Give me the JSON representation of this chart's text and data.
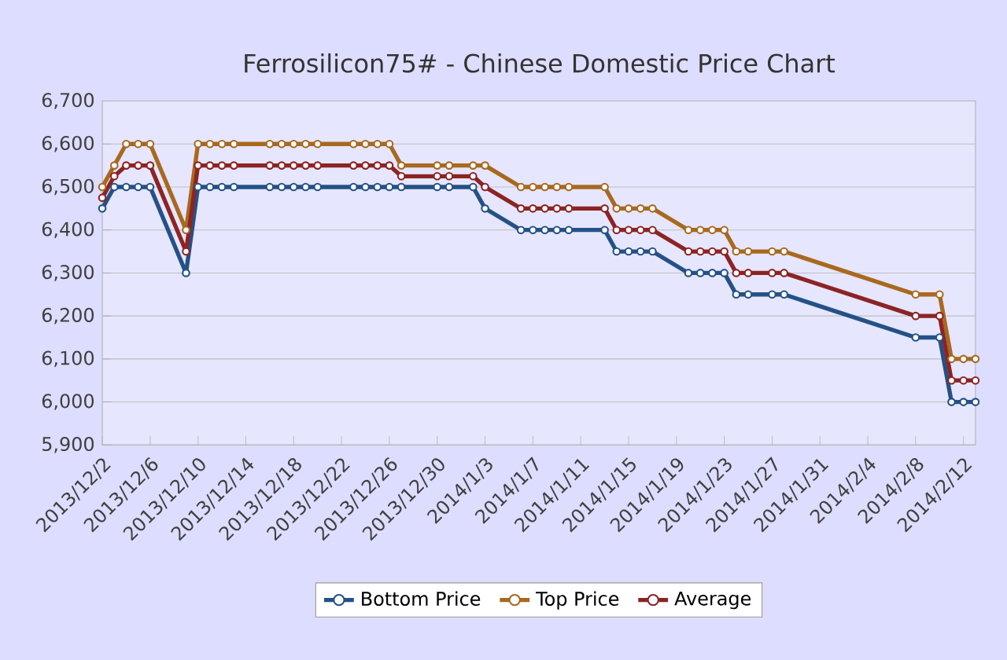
{
  "chart_data": {
    "type": "line",
    "title": "Ferrosilicon75# - Chinese Domestic Price Chart",
    "x": [
      "2013-12-02",
      "2013-12-03",
      "2013-12-04",
      "2013-12-05",
      "2013-12-06",
      "2013-12-09",
      "2013-12-10",
      "2013-12-11",
      "2013-12-12",
      "2013-12-13",
      "2013-12-16",
      "2013-12-17",
      "2013-12-18",
      "2013-12-19",
      "2013-12-20",
      "2013-12-23",
      "2013-12-24",
      "2013-12-25",
      "2013-12-26",
      "2013-12-27",
      "2013-12-30",
      "2013-12-31",
      "2014-01-02",
      "2014-01-03",
      "2014-01-06",
      "2014-01-07",
      "2014-01-08",
      "2014-01-09",
      "2014-01-10",
      "2014-01-13",
      "2014-01-14",
      "2014-01-15",
      "2014-01-16",
      "2014-01-17",
      "2014-01-20",
      "2014-01-21",
      "2014-01-22",
      "2014-01-23",
      "2014-01-24",
      "2014-01-25",
      "2014-01-27",
      "2014-01-28",
      "2014-02-08",
      "2014-02-10",
      "2014-02-11",
      "2014-02-12",
      "2014-02-13"
    ],
    "series": [
      {
        "name": "Bottom Price",
        "color": "#245186",
        "values": [
          6450,
          6500,
          6500,
          6500,
          6500,
          6300,
          6500,
          6500,
          6500,
          6500,
          6500,
          6500,
          6500,
          6500,
          6500,
          6500,
          6500,
          6500,
          6500,
          6500,
          6500,
          6500,
          6500,
          6450,
          6400,
          6400,
          6400,
          6400,
          6400,
          6400,
          6350,
          6350,
          6350,
          6350,
          6300,
          6300,
          6300,
          6300,
          6250,
          6250,
          6250,
          6250,
          6150,
          6150,
          6000,
          6000,
          6000
        ]
      },
      {
        "name": "Top Price",
        "color": "#a8691f",
        "values": [
          6500,
          6550,
          6600,
          6600,
          6600,
          6400,
          6600,
          6600,
          6600,
          6600,
          6600,
          6600,
          6600,
          6600,
          6600,
          6600,
          6600,
          6600,
          6600,
          6550,
          6550,
          6550,
          6550,
          6550,
          6500,
          6500,
          6500,
          6500,
          6500,
          6500,
          6450,
          6450,
          6450,
          6450,
          6400,
          6400,
          6400,
          6400,
          6350,
          6350,
          6350,
          6350,
          6250,
          6250,
          6100,
          6100,
          6100
        ]
      },
      {
        "name": "Average",
        "color": "#8c2424",
        "values": [
          6475,
          6525,
          6550,
          6550,
          6550,
          6350,
          6550,
          6550,
          6550,
          6550,
          6550,
          6550,
          6550,
          6550,
          6550,
          6550,
          6550,
          6550,
          6550,
          6525,
          6525,
          6525,
          6525,
          6500,
          6450,
          6450,
          6450,
          6450,
          6450,
          6450,
          6400,
          6400,
          6400,
          6400,
          6350,
          6350,
          6350,
          6350,
          6300,
          6300,
          6300,
          6300,
          6200,
          6200,
          6050,
          6050,
          6050
        ]
      }
    ],
    "xlim": [
      "2013-12-02",
      "2014-02-13"
    ],
    "xticks": [
      {
        "value": "2013-12-02",
        "label": "2013/12/2"
      },
      {
        "value": "2013-12-06",
        "label": "2013/12/6"
      },
      {
        "value": "2013-12-10",
        "label": "2013/12/10"
      },
      {
        "value": "2013-12-14",
        "label": "2013/12/14"
      },
      {
        "value": "2013-12-18",
        "label": "2013/12/18"
      },
      {
        "value": "2013-12-22",
        "label": "2013/12/22"
      },
      {
        "value": "2013-12-26",
        "label": "2013/12/26"
      },
      {
        "value": "2013-12-30",
        "label": "2013/12/30"
      },
      {
        "value": "2014-01-03",
        "label": "2014/1/3"
      },
      {
        "value": "2014-01-07",
        "label": "2014/1/7"
      },
      {
        "value": "2014-01-11",
        "label": "2014/1/11"
      },
      {
        "value": "2014-01-15",
        "label": "2014/1/15"
      },
      {
        "value": "2014-01-19",
        "label": "2014/1/19"
      },
      {
        "value": "2014-01-23",
        "label": "2014/1/23"
      },
      {
        "value": "2014-01-27",
        "label": "2014/1/27"
      },
      {
        "value": "2014-01-31",
        "label": "2014/1/31"
      },
      {
        "value": "2014-02-04",
        "label": "2014/2/4"
      },
      {
        "value": "2014-02-08",
        "label": "2014/2/8"
      },
      {
        "value": "2014-02-12",
        "label": "2014/2/12"
      }
    ],
    "ylim": [
      5900,
      6700
    ],
    "yticks": [
      {
        "value": 5900,
        "label": "5,900"
      },
      {
        "value": 6000,
        "label": "6,000"
      },
      {
        "value": 6100,
        "label": "6,100"
      },
      {
        "value": 6200,
        "label": "6,200"
      },
      {
        "value": 6300,
        "label": "6,300"
      },
      {
        "value": 6400,
        "label": "6,400"
      },
      {
        "value": 6500,
        "label": "6,500"
      },
      {
        "value": 6600,
        "label": "6,600"
      },
      {
        "value": 6700,
        "label": "6,700"
      }
    ],
    "grid": "y",
    "legend": "bottom",
    "marker": "circle",
    "line_style": "solid"
  }
}
